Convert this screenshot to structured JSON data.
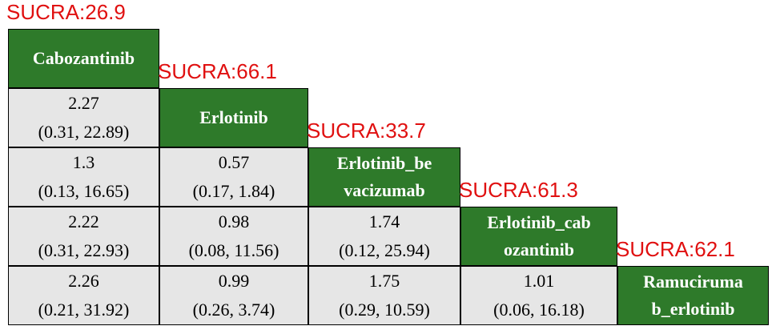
{
  "treatments": [
    {
      "sucra": "SUCRA:26.9",
      "name_lines": [
        "Cabozantinib"
      ]
    },
    {
      "sucra": "SUCRA:66.1",
      "name_lines": [
        "Erlotinib"
      ]
    },
    {
      "sucra": "SUCRA:33.7",
      "name_lines": [
        "Erlotinib_be",
        "vacizumab"
      ]
    },
    {
      "sucra": "SUCRA:61.3",
      "name_lines": [
        "Erlotinib_cab",
        "ozantinib"
      ]
    },
    {
      "sucra": "SUCRA:62.1",
      "name_lines": [
        "Ramuciruma",
        "b_erlotinib"
      ]
    }
  ],
  "comparisons": [
    [],
    [
      {
        "estimate": "2.27",
        "ci": "(0.31, 22.89)"
      }
    ],
    [
      {
        "estimate": "1.3",
        "ci": "(0.13, 16.65)"
      },
      {
        "estimate": "0.57",
        "ci": "(0.17, 1.84)"
      }
    ],
    [
      {
        "estimate": "2.22",
        "ci": "(0.31, 22.93)"
      },
      {
        "estimate": "0.98",
        "ci": "(0.08, 11.56)"
      },
      {
        "estimate": "1.74",
        "ci": "(0.12, 25.94)"
      }
    ],
    [
      {
        "estimate": "2.26",
        "ci": "(0.21, 31.92)"
      },
      {
        "estimate": "0.99",
        "ci": "(0.26, 3.74)"
      },
      {
        "estimate": "1.75",
        "ci": "(0.29, 10.59)"
      },
      {
        "estimate": "1.01",
        "ci": "(0.06, 16.18)"
      }
    ]
  ]
}
